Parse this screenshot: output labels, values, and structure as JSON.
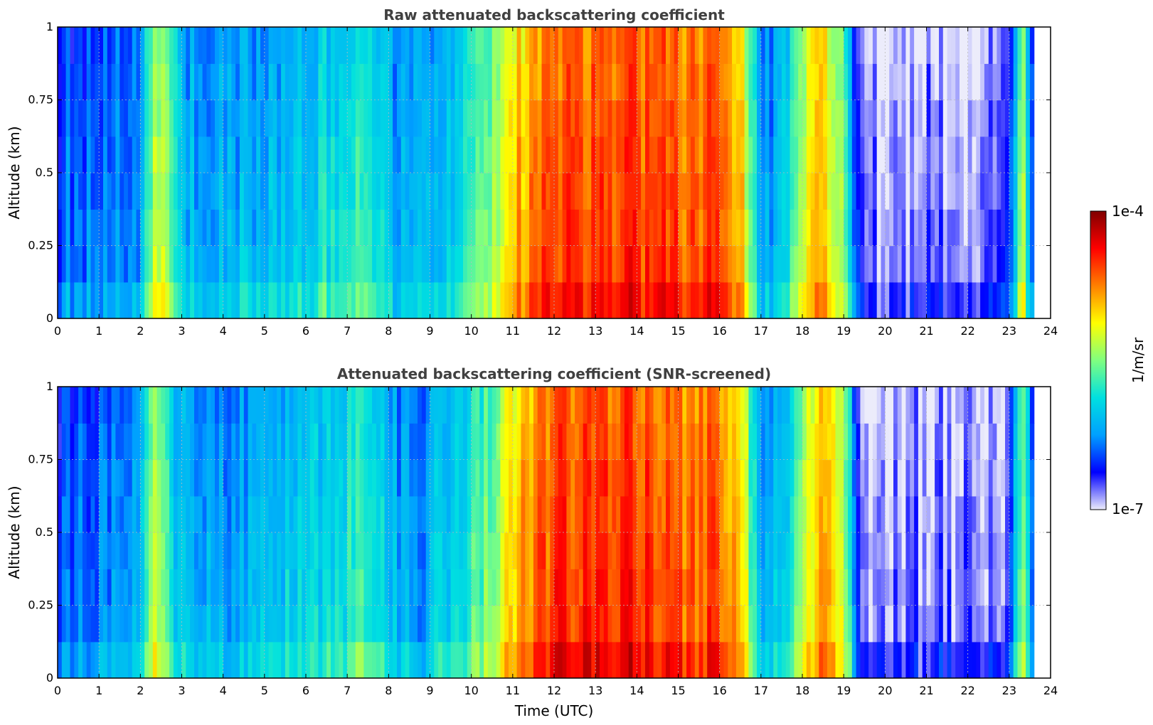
{
  "figure": {
    "xlabel": "Time (UTC)",
    "colorbar": {
      "label": "1/m/sr",
      "max_label": "1e-4",
      "min_label": "1e-7",
      "scale": "log",
      "range": [
        1e-07,
        0.0001
      ],
      "colormap": [
        "#ececfb",
        "#0000ff",
        "#00a0ff",
        "#00e0e0",
        "#80ff80",
        "#ffff00",
        "#ff8000",
        "#ff0000",
        "#800000"
      ]
    }
  },
  "chart_data": [
    {
      "type": "heatmap",
      "title": "Raw attenuated backscattering coefficient",
      "xlabel": "",
      "ylabel": "Altitude (km)",
      "xlim": [
        0,
        24
      ],
      "ylim": [
        0,
        1
      ],
      "grid": true,
      "xticks": [
        "0",
        "1",
        "2",
        "3",
        "4",
        "5",
        "6",
        "7",
        "8",
        "9",
        "10",
        "11",
        "12",
        "13",
        "14",
        "15",
        "16",
        "17",
        "18",
        "19",
        "20",
        "21",
        "22",
        "23",
        "24"
      ],
      "yticks": [
        "0",
        "0.25",
        "0.5",
        "0.75",
        "1"
      ],
      "data_coverage_hours": [
        0,
        23.6
      ],
      "intensity_profile": {
        "hours": [
          0,
          1,
          2,
          2.4,
          3,
          4,
          5,
          6,
          7,
          7.5,
          8,
          8.5,
          9,
          10,
          10.5,
          11,
          11.5,
          12,
          13,
          14,
          15,
          16,
          16.5,
          17,
          17.5,
          18,
          18.5,
          19,
          19.3,
          19.5,
          20,
          21,
          22,
          23,
          23.3,
          23.6
        ],
        "level": [
          0.22,
          0.24,
          0.28,
          0.62,
          0.3,
          0.3,
          0.32,
          0.36,
          0.42,
          0.46,
          0.34,
          0.26,
          0.3,
          0.42,
          0.52,
          0.68,
          0.76,
          0.82,
          0.82,
          0.84,
          0.8,
          0.8,
          0.72,
          0.28,
          0.32,
          0.6,
          0.72,
          0.56,
          0.2,
          0.08,
          0.06,
          0.08,
          0.07,
          0.1,
          0.6,
          0.12
        ]
      }
    },
    {
      "type": "heatmap",
      "title": "Attenuated backscattering coefficient (SNR-screened)",
      "xlabel": "Time (UTC)",
      "ylabel": "Altitude (km)",
      "xlim": [
        0,
        24
      ],
      "ylim": [
        0,
        1
      ],
      "grid": true,
      "xticks": [
        "0",
        "1",
        "2",
        "3",
        "4",
        "5",
        "6",
        "7",
        "8",
        "9",
        "10",
        "11",
        "12",
        "13",
        "14",
        "15",
        "16",
        "17",
        "18",
        "19",
        "20",
        "21",
        "22",
        "23",
        "24"
      ],
      "yticks": [
        "0",
        "0.25",
        "0.5",
        "0.75",
        "1"
      ],
      "data_coverage_hours": [
        0,
        23.6
      ],
      "screened_out_regions_note": "white",
      "intensity_profile": {
        "hours": [
          0,
          1,
          2,
          2.4,
          3,
          4,
          5,
          6,
          7,
          7.5,
          8,
          8.5,
          9,
          10,
          10.5,
          11,
          11.5,
          12,
          13,
          14,
          15,
          16,
          16.5,
          17,
          17.5,
          18,
          18.5,
          19,
          19.3,
          19.5,
          20,
          21,
          22,
          23,
          23.3,
          23.6
        ],
        "level": [
          0.22,
          0.24,
          0.28,
          0.62,
          0.3,
          0.3,
          0.32,
          0.36,
          0.42,
          0.46,
          0.34,
          0.26,
          0.3,
          0.42,
          0.52,
          0.68,
          0.76,
          0.84,
          0.86,
          0.84,
          0.8,
          0.8,
          0.72,
          0.28,
          0.32,
          0.6,
          0.72,
          0.56,
          0.2,
          0.08,
          0.06,
          0.08,
          0.07,
          0.1,
          0.6,
          0.12
        ]
      }
    }
  ]
}
